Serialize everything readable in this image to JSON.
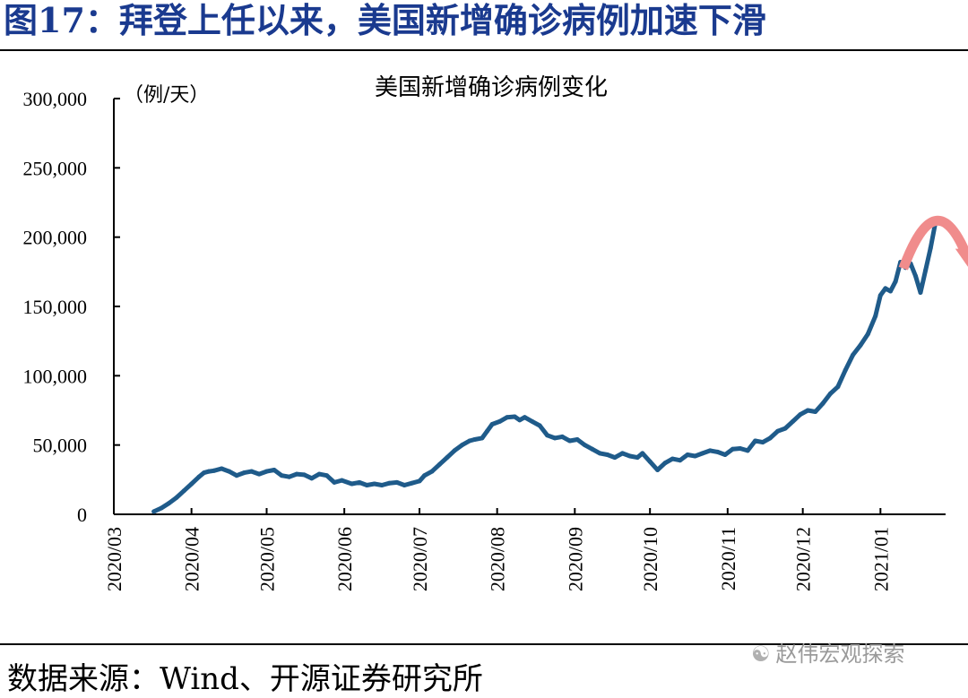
{
  "figure": {
    "title": "图17：拜登上任以来，美国新增确诊病例加速下滑",
    "source": "数据来源：Wind、开源证券研究所",
    "watermark": "赵伟宏观探索",
    "watermark_icon": "wechat-icon"
  },
  "colors": {
    "title": "#1a3a8f",
    "series": "#1f5b8a",
    "arrow": "#f08c8c"
  },
  "chart_data": {
    "type": "line",
    "title": "美国新增确诊病例变化",
    "unit_label": "（例/天）",
    "xlabel": "",
    "ylabel": "",
    "ylim": [
      0,
      300000
    ],
    "y_ticks": [
      "0",
      "50,000",
      "100,000",
      "150,000",
      "200,000",
      "250,000",
      "300,000"
    ],
    "y_tick_values": [
      0,
      50000,
      100000,
      150000,
      200000,
      250000,
      300000
    ],
    "x_ticks": [
      "2020/03",
      "2020/04",
      "2020/05",
      "2020/06",
      "2020/07",
      "2020/08",
      "2020/09",
      "2020/10",
      "2020/11",
      "2020/12",
      "2021/01"
    ],
    "x_tick_dates": [
      "2020-03-01",
      "2020-04-01",
      "2020-05-01",
      "2020-06-01",
      "2020-07-01",
      "2020-08-01",
      "2020-09-01",
      "2020-10-01",
      "2020-11-01",
      "2020-12-01",
      "2021-01-01"
    ],
    "xlim": [
      "2020-03-01",
      "2021-01-27"
    ],
    "grid": false,
    "legend": "none",
    "annotation": "curved arrow at peak indicating decline",
    "series": [
      {
        "points": [
          [
            "2020-03-17",
            2000
          ],
          [
            "2020-03-20",
            4500
          ],
          [
            "2020-03-23",
            8000
          ],
          [
            "2020-03-26",
            12000
          ],
          [
            "2020-03-29",
            17000
          ],
          [
            "2020-04-01",
            22000
          ],
          [
            "2020-04-04",
            27000
          ],
          [
            "2020-04-06",
            30000
          ],
          [
            "2020-04-08",
            31000
          ],
          [
            "2020-04-10",
            31500
          ],
          [
            "2020-04-13",
            33000
          ],
          [
            "2020-04-16",
            31000
          ],
          [
            "2020-04-19",
            28000
          ],
          [
            "2020-04-22",
            30000
          ],
          [
            "2020-04-25",
            31000
          ],
          [
            "2020-04-28",
            29000
          ],
          [
            "2020-05-01",
            31000
          ],
          [
            "2020-05-04",
            32000
          ],
          [
            "2020-05-07",
            28000
          ],
          [
            "2020-05-10",
            27000
          ],
          [
            "2020-05-13",
            29000
          ],
          [
            "2020-05-16",
            28500
          ],
          [
            "2020-05-19",
            26000
          ],
          [
            "2020-05-22",
            29000
          ],
          [
            "2020-05-25",
            28000
          ],
          [
            "2020-05-28",
            23000
          ],
          [
            "2020-05-31",
            24500
          ],
          [
            "2020-06-04",
            22000
          ],
          [
            "2020-06-07",
            23000
          ],
          [
            "2020-06-10",
            21000
          ],
          [
            "2020-06-13",
            22000
          ],
          [
            "2020-06-16",
            21000
          ],
          [
            "2020-06-19",
            22500
          ],
          [
            "2020-06-22",
            23000
          ],
          [
            "2020-06-25",
            21000
          ],
          [
            "2020-06-28",
            22500
          ],
          [
            "2020-07-01",
            24000
          ],
          [
            "2020-07-03",
            28000
          ],
          [
            "2020-07-06",
            31000
          ],
          [
            "2020-07-09",
            36000
          ],
          [
            "2020-07-12",
            41000
          ],
          [
            "2020-07-15",
            46000
          ],
          [
            "2020-07-18",
            50000
          ],
          [
            "2020-07-21",
            53000
          ],
          [
            "2020-07-23",
            54000
          ],
          [
            "2020-07-26",
            55000
          ],
          [
            "2020-07-28",
            60000
          ],
          [
            "2020-07-30",
            65000
          ],
          [
            "2020-08-02",
            67000
          ],
          [
            "2020-08-05",
            70000
          ],
          [
            "2020-08-08",
            70500
          ],
          [
            "2020-08-10",
            68000
          ],
          [
            "2020-08-12",
            70000
          ],
          [
            "2020-08-15",
            67000
          ],
          [
            "2020-08-18",
            64000
          ],
          [
            "2020-08-21",
            57000
          ],
          [
            "2020-08-24",
            55000
          ],
          [
            "2020-08-27",
            56000
          ],
          [
            "2020-08-30",
            53000
          ],
          [
            "2020-09-02",
            54000
          ],
          [
            "2020-09-05",
            50000
          ],
          [
            "2020-09-08",
            47000
          ],
          [
            "2020-09-11",
            44000
          ],
          [
            "2020-09-14",
            43000
          ],
          [
            "2020-09-17",
            41000
          ],
          [
            "2020-09-20",
            44000
          ],
          [
            "2020-09-23",
            42000
          ],
          [
            "2020-09-26",
            41000
          ],
          [
            "2020-09-28",
            44000
          ],
          [
            "2020-10-01",
            38000
          ],
          [
            "2020-10-04",
            32000
          ],
          [
            "2020-10-07",
            37000
          ],
          [
            "2020-10-10",
            40000
          ],
          [
            "2020-10-13",
            39000
          ],
          [
            "2020-10-16",
            43000
          ],
          [
            "2020-10-19",
            42000
          ],
          [
            "2020-10-22",
            44000
          ],
          [
            "2020-10-25",
            46000
          ],
          [
            "2020-10-28",
            45000
          ],
          [
            "2020-10-31",
            43000
          ],
          [
            "2020-11-03",
            47000
          ],
          [
            "2020-11-06",
            47500
          ],
          [
            "2020-11-09",
            46000
          ],
          [
            "2020-11-12",
            53000
          ],
          [
            "2020-11-15",
            52000
          ],
          [
            "2020-11-18",
            55000
          ],
          [
            "2020-11-21",
            60000
          ],
          [
            "2020-11-24",
            62000
          ],
          [
            "2020-11-27",
            67000
          ],
          [
            "2020-11-30",
            72000
          ],
          [
            "2020-12-03",
            75000
          ],
          [
            "2020-12-06",
            74000
          ],
          [
            "2020-12-09",
            80000
          ],
          [
            "2020-12-12",
            87000
          ],
          [
            "2020-12-15",
            92000
          ],
          [
            "2020-12-18",
            104000
          ],
          [
            "2020-12-21",
            115000
          ],
          [
            "2020-12-24",
            122000
          ],
          [
            "2020-12-27",
            130000
          ],
          [
            "2020-12-30",
            143000
          ],
          [
            "2021-01-01",
            158000
          ],
          [
            "2021-01-03",
            163000
          ],
          [
            "2021-01-05",
            161000
          ],
          [
            "2021-01-07",
            168000
          ],
          [
            "2021-01-09",
            182000
          ],
          [
            "2021-01-11",
            178000
          ],
          [
            "2021-01-13",
            181000
          ],
          [
            "2021-01-15",
            172000
          ],
          [
            "2021-01-17",
            160000
          ],
          [
            "2021-01-19",
            176000
          ],
          [
            "2021-01-21",
            192000
          ],
          [
            "2021-01-23",
            211000
          ]
        ]
      }
    ]
  }
}
